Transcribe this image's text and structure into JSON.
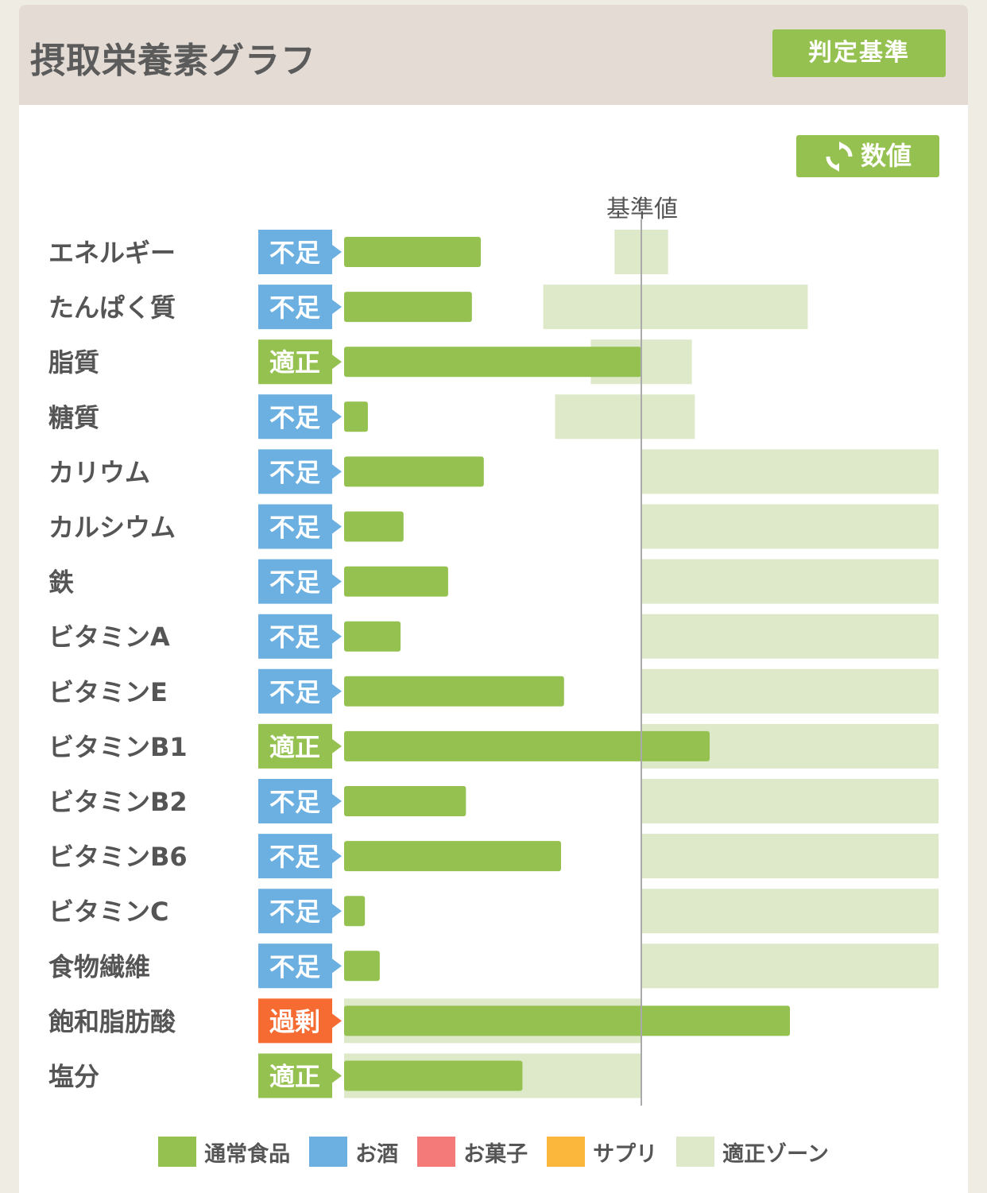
{
  "header": {
    "title": "摂取栄養素グラフ",
    "criteria_button": "判定基準"
  },
  "toolbar": {
    "numeric_button": "数値",
    "numeric_icon": "refresh-icon"
  },
  "colors": {
    "header_bg": "#e3dbd4",
    "bar_normal_food": "#95c150",
    "zone": "#dde9c9",
    "status_low": "#6bb0e1",
    "status_ok": "#95c150",
    "status_over": "#f56b32",
    "legend_alcohol": "#6bb0e1",
    "legend_snack": "#f47a7a",
    "legend_supplement": "#fbb73b"
  },
  "chart_data": {
    "type": "bar",
    "orientation": "horizontal",
    "reference_label": "基準値",
    "reference_value": 100,
    "xlim": [
      0,
      200
    ],
    "unit": "% of reference (estimated)",
    "categories": [
      "エネルギー",
      "たんぱく質",
      "脂質",
      "糖質",
      "カリウム",
      "カルシウム",
      "鉄",
      "ビタミンA",
      "ビタミンE",
      "ビタミンB1",
      "ビタミンB2",
      "ビタミンB6",
      "ビタミンC",
      "食物繊維",
      "飽和脂肪酸",
      "塩分"
    ],
    "status": [
      "不足",
      "不足",
      "適正",
      "不足",
      "不足",
      "不足",
      "不足",
      "不足",
      "不足",
      "適正",
      "不足",
      "不足",
      "不足",
      "不足",
      "過剰",
      "適正"
    ],
    "series": [
      {
        "name": "通常食品",
        "values": [
          46,
          43,
          100,
          8,
          47,
          20,
          35,
          19,
          74,
          123,
          41,
          73,
          7,
          12,
          150,
          60
        ]
      }
    ],
    "zones": [
      [
        91,
        109
      ],
      [
        67,
        156
      ],
      [
        83,
        117
      ],
      [
        71,
        118
      ],
      [
        100,
        200
      ],
      [
        100,
        200
      ],
      [
        100,
        200
      ],
      [
        100,
        200
      ],
      [
        100,
        200
      ],
      [
        100,
        200
      ],
      [
        100,
        200
      ],
      [
        100,
        200
      ],
      [
        100,
        200
      ],
      [
        100,
        200
      ],
      [
        0,
        100
      ],
      [
        0,
        100
      ]
    ],
    "legend": [
      {
        "label": "通常食品",
        "color": "#95c150"
      },
      {
        "label": "お酒",
        "color": "#6bb0e1"
      },
      {
        "label": "お菓子",
        "color": "#f47a7a"
      },
      {
        "label": "サプリ",
        "color": "#fbb73b"
      },
      {
        "label": "適正ゾーン",
        "color": "#dde9c9"
      }
    ]
  }
}
